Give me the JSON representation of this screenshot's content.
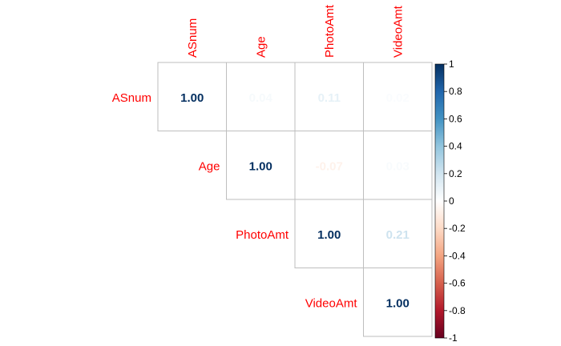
{
  "chart_data": {
    "type": "heatmap",
    "variables": [
      "ASnum",
      "Age",
      "PhotoAmt",
      "VideoAmt"
    ],
    "matrix": [
      [
        1.0,
        0.04,
        0.11,
        0.02
      ],
      [
        0.04,
        1.0,
        -0.07,
        0.03
      ],
      [
        0.11,
        -0.07,
        1.0,
        0.21
      ],
      [
        0.02,
        0.03,
        0.21,
        1.0
      ]
    ],
    "cell_labels": [
      [
        "1.00",
        "0.04",
        "0.11",
        "0.02"
      ],
      [
        "",
        "1.00",
        "-0.07",
        "0.03"
      ],
      [
        "",
        "",
        "1.00",
        "0.21"
      ],
      [
        "",
        "",
        "",
        "1.00"
      ]
    ],
    "layout": "upper-triangle",
    "colorbar": {
      "ticks": [
        "1",
        "0.8",
        "0.6",
        "0.4",
        "0.2",
        "0",
        "-0.2",
        "-0.4",
        "-0.6",
        "-0.8",
        "-1"
      ],
      "range": [
        -1,
        1
      ],
      "colors": [
        "#67001F",
        "#B2182B",
        "#D6604D",
        "#F4A582",
        "#FDDBC7",
        "#FFFFFF",
        "#D1E5F0",
        "#92C5DE",
        "#4393C3",
        "#2166AC",
        "#053061"
      ]
    },
    "colors": {
      "var_label": "#FF0000",
      "grid": "#BEBEBE"
    }
  }
}
